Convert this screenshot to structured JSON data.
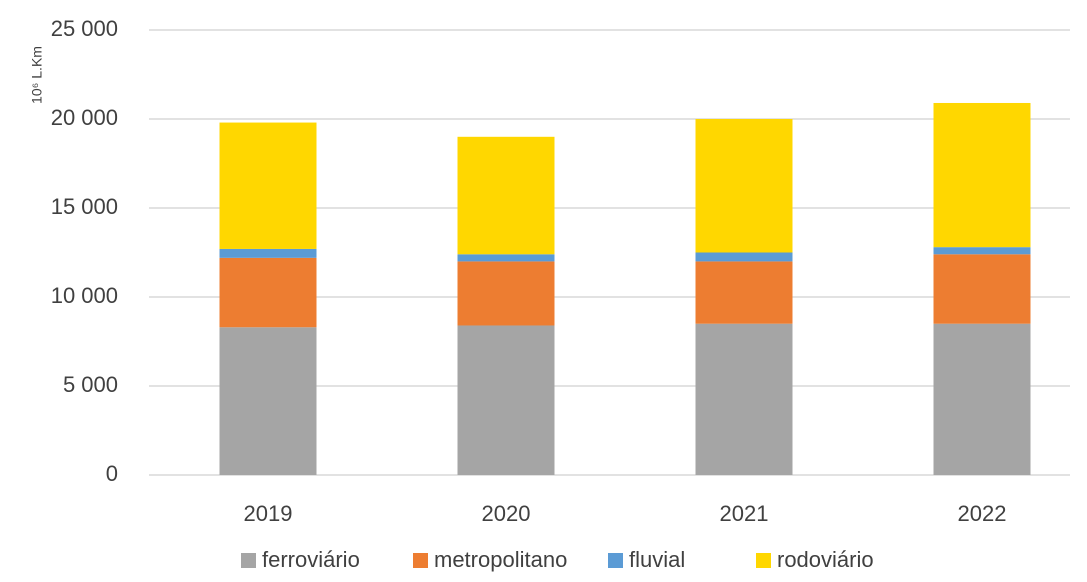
{
  "chart_data": {
    "type": "stacked_bar",
    "y_label": "10⁶ L.Km",
    "categories": [
      "2019",
      "2020",
      "2021",
      "2022"
    ],
    "series": [
      {
        "name": "ferroviário",
        "color": "#a5a5a5",
        "values": [
          8300,
          8400,
          8500,
          8500
        ]
      },
      {
        "name": "metropolitano",
        "color": "#ed7d31",
        "values": [
          3900,
          3600,
          3500,
          3900
        ]
      },
      {
        "name": "fluvial",
        "color": "#5b9bd5",
        "values": [
          500,
          400,
          500,
          400
        ]
      },
      {
        "name": "rodoviário",
        "color": "#ffd700",
        "values": [
          7100,
          6600,
          7500,
          8100
        ]
      }
    ],
    "ylim": [
      0,
      25000
    ],
    "yticks": [
      0,
      {
        "value": 5000,
        "label": "5 000"
      },
      {
        "value": 10000,
        "label": "10 000"
      },
      {
        "value": 15000,
        "label": "15 000"
      },
      {
        "value": 20000,
        "label": "20 000"
      },
      {
        "value": 25000,
        "label": "25 000"
      }
    ],
    "grid": true,
    "legend": "bottom"
  }
}
